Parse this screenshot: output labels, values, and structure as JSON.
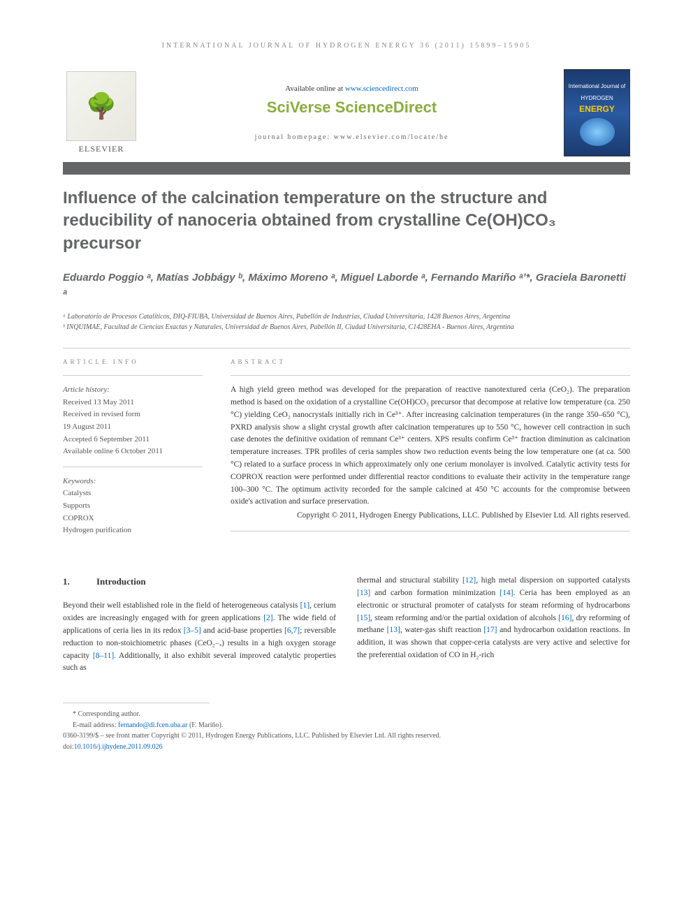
{
  "journal_header": "INTERNATIONAL JOURNAL OF HYDROGEN ENERGY 36 (2011) 15899–15905",
  "banner": {
    "available_prefix": "Available online at ",
    "available_link": "www.sciencedirect.com",
    "sciverse": "SciVerse ScienceDirect",
    "homepage_prefix": "journal homepage: ",
    "homepage_link": "www.elsevier.com/locate/he",
    "elsevier_label": "ELSEVIER",
    "cover_top": "International Journal of",
    "cover_mid": "HYDROGEN",
    "cover_energy": "ENERGY"
  },
  "title": "Influence of the calcination temperature on the structure and reducibility of nanoceria obtained from crystalline Ce(OH)CO₃ precursor",
  "authors_html": "Eduardo Poggio ᵃ, Matías Jobbágy ᵇ, Máximo Moreno ᵃ, Miguel Laborde ᵃ, Fernando Mariño ᵃʼ*, Graciela Baronetti ᵃ",
  "affiliations": {
    "a": "ᵃ Laboratorio de Procesos Catalíticos, DIQ-FIUBA, Universidad de Buenos Aires, Pabellón de Industrias, Ciudad Universitaria, 1428 Buenos Aires, Argentina",
    "b": "ᵇ INQUIMAE, Facultad de Ciencias Exactas y Naturales, Universidad de Buenos Aires, Pabellón II, Ciudad Universitaria, C1428EHA - Buenos Aires, Argentina"
  },
  "article_info": {
    "label": "ARTICLE INFO",
    "history_label": "Article history:",
    "received": "Received 13 May 2011",
    "revised1": "Received in revised form",
    "revised2": "19 August 2011",
    "accepted": "Accepted 6 September 2011",
    "online": "Available online 6 October 2011",
    "keywords_label": "Keywords:",
    "keywords": [
      "Catalysts",
      "Supports",
      "COPROX",
      "Hydrogen purification"
    ]
  },
  "abstract": {
    "label": "ABSTRACT",
    "text": "A high yield green method was developed for the preparation of reactive nanotextured ceria (CeO₂). The preparation method is based on the oxidation of a crystalline Ce(OH)CO₃ precursor that decompose at relative low temperature (ca. 250 °C) yielding CeO₂ nanocrystals initially rich in Ce³⁺. After increasing calcination temperatures (in the range 350–650 °C), PXRD analysis show a slight crystal growth after calcination temperatures up to 550 °C, however cell contraction in such case denotes the definitive oxidation of remnant Ce³⁺ centers. XPS results confirm Ce³⁺ fraction diminution as calcination temperature increases. TPR profiles of ceria samples show two reduction events being the low temperature one (at ca. 500 °C) related to a surface process in which approximately only one cerium monolayer is involved. Catalytic activity tests for COPROX reaction were performed under differential reactor conditions to evaluate their activity in the temperature range 100–300 °C. The optimum activity recorded for the sample calcined at 450 °C accounts for the compromise between oxide's activation and surface preservation.",
    "copyright": "Copyright © 2011, Hydrogen Energy Publications, LLC. Published by Elsevier Ltd. All rights reserved."
  },
  "intro": {
    "num": "1.",
    "heading": "Introduction",
    "col1_parts": [
      "Beyond their well established role in the field of heterogeneous catalysis ",
      "[1]",
      ", cerium oxides are increasingly engaged with for green applications ",
      "[2]",
      ". The wide field of applications of ceria lies in its redox ",
      "[3–5]",
      " and acid-base properties ",
      "[6,7]",
      "; reversible reduction to non-stoichiometric phases (CeO₂₋ₓ) results in a high oxygen storage capacity ",
      "[8–11]",
      ". Additionally, it also exhibit several improved catalytic properties such as"
    ],
    "col2_parts": [
      "thermal and structural stability ",
      "[12]",
      ", high metal dispersion on supported catalysts ",
      "[13]",
      " and carbon formation minimization ",
      "[14]",
      ". Ceria has been employed as an electronic or structural promoter of catalysts for steam reforming of hydrocarbons ",
      "[15]",
      ", steam reforming and/or the partial oxidation of alcohols ",
      "[16]",
      ", dry reforming of methane ",
      "[13]",
      ", water-gas shift reaction ",
      "[17]",
      " and hydrocarbon oxidation reactions. In addition, it was shown that copper-ceria catalysts are very active and selective for the preferential oxidation of CO in H₂-rich"
    ]
  },
  "footer": {
    "corresponding": "* Corresponding author.",
    "email_label": "E-mail address: ",
    "email": "fernando@di.fcen.uba.ar",
    "email_suffix": " (F. Mariño).",
    "copyright": "0360-3199/$ – see front matter Copyright © 2011, Hydrogen Energy Publications, LLC. Published by Elsevier Ltd. All rights reserved.",
    "doi_label": "doi:",
    "doi": "10.1016/j.ijhydene.2011.09.026"
  },
  "colors": {
    "title_gray": "#646567",
    "link_blue": "#0066cc",
    "sciverse_green": "#8aad3e",
    "text": "#333333",
    "muted": "#888888"
  },
  "typography": {
    "title_fontsize": 24,
    "author_fontsize": 15,
    "body_fontsize": 11.5,
    "header_letterspacing": 3
  }
}
